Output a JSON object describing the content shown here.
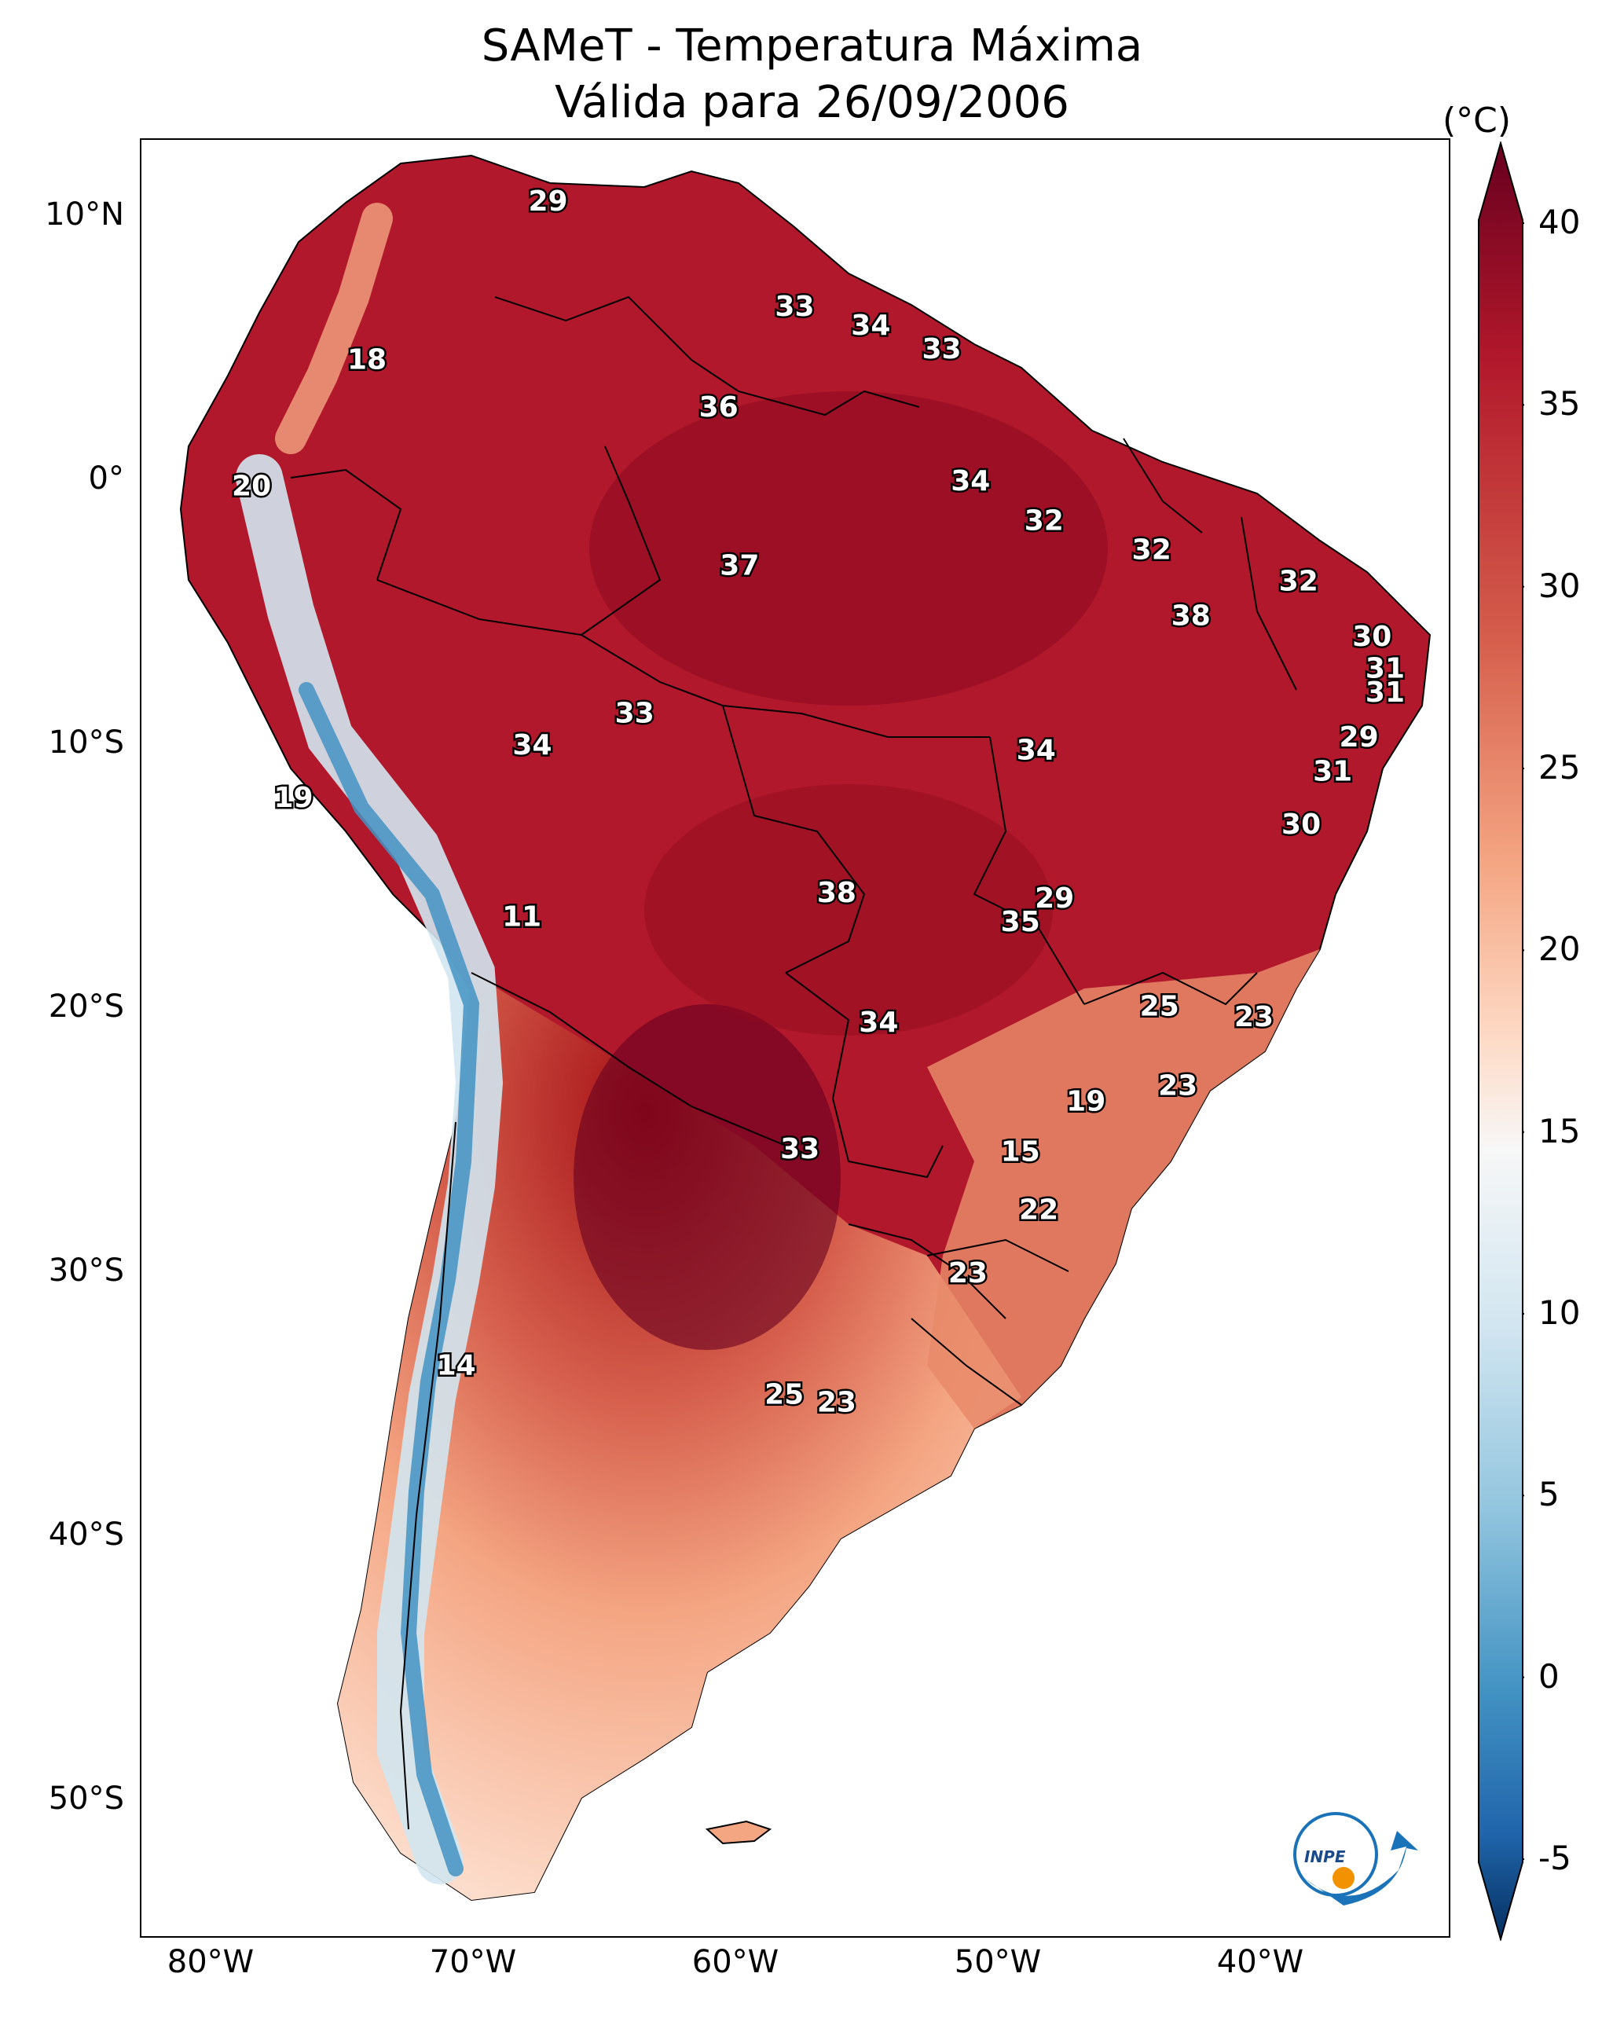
{
  "title": "SAMeT - Temperatura Máxima",
  "subtitle": "Válida para 26/09/2006",
  "unit": "(°C)",
  "colors": {
    "hot": "#67001f",
    "warm": "#b2182b",
    "mild": "#f4a582",
    "neutral": "#f7f7f7",
    "cool": "#92c5de",
    "cold": "#2166ac",
    "coldest": "#053061"
  },
  "lat_ticks": [
    {
      "label": "10°N",
      "lat": 10
    },
    {
      "label": "0°",
      "lat": 0
    },
    {
      "label": "10°S",
      "lat": -10
    },
    {
      "label": "20°S",
      "lat": -20
    },
    {
      "label": "30°S",
      "lat": -30
    },
    {
      "label": "40°S",
      "lat": -40
    },
    {
      "label": "50°S",
      "lat": -50
    }
  ],
  "lon_ticks": [
    {
      "label": "80°W",
      "lon": -80
    },
    {
      "label": "70°W",
      "lon": -70
    },
    {
      "label": "60°W",
      "lon": -60
    },
    {
      "label": "50°W",
      "lon": -50
    },
    {
      "label": "40°W",
      "lon": -40
    }
  ],
  "colorbar": {
    "min": -5,
    "max": 40,
    "ticks": [
      "40",
      "35",
      "30",
      "25",
      "20",
      "15",
      "10",
      "5",
      "0",
      "-5"
    ]
  },
  "station_values": [
    {
      "v": "29",
      "lon": -67.2,
      "lat": 10.6
    },
    {
      "v": "33",
      "lon": -57.8,
      "lat": 6.6
    },
    {
      "v": "34",
      "lon": -54.9,
      "lat": 5.9
    },
    {
      "v": "33",
      "lon": -52.2,
      "lat": 5.0
    },
    {
      "v": "18",
      "lon": -74.1,
      "lat": 4.6
    },
    {
      "v": "36",
      "lon": -60.7,
      "lat": 2.8
    },
    {
      "v": "20",
      "lon": -78.5,
      "lat": -0.2
    },
    {
      "v": "34",
      "lon": -51.1,
      "lat": 0.0
    },
    {
      "v": "32",
      "lon": -48.3,
      "lat": -1.5
    },
    {
      "v": "32",
      "lon": -44.2,
      "lat": -2.6
    },
    {
      "v": "37",
      "lon": -59.9,
      "lat": -3.2
    },
    {
      "v": "32",
      "lon": -38.6,
      "lat": -3.8
    },
    {
      "v": "38",
      "lon": -42.7,
      "lat": -5.1
    },
    {
      "v": "30",
      "lon": -35.8,
      "lat": -5.9
    },
    {
      "v": "31",
      "lon": -35.3,
      "lat": -7.1
    },
    {
      "v": "31",
      "lon": -35.3,
      "lat": -8.0
    },
    {
      "v": "33",
      "lon": -63.9,
      "lat": -8.8
    },
    {
      "v": "29",
      "lon": -36.3,
      "lat": -9.7
    },
    {
      "v": "34",
      "lon": -67.8,
      "lat": -10.0
    },
    {
      "v": "34",
      "lon": -48.6,
      "lat": -10.2
    },
    {
      "v": "31",
      "lon": -37.3,
      "lat": -11.0
    },
    {
      "v": "19",
      "lon": -76.9,
      "lat": -12.0
    },
    {
      "v": "30",
      "lon": -38.5,
      "lat": -13.0
    },
    {
      "v": "38",
      "lon": -56.2,
      "lat": -15.6
    },
    {
      "v": "29",
      "lon": -47.9,
      "lat": -15.8
    },
    {
      "v": "11",
      "lon": -68.2,
      "lat": -16.5
    },
    {
      "v": "35",
      "lon": -49.2,
      "lat": -16.7
    },
    {
      "v": "25",
      "lon": -43.9,
      "lat": -19.9
    },
    {
      "v": "34",
      "lon": -54.6,
      "lat": -20.5
    },
    {
      "v": "23",
      "lon": -40.3,
      "lat": -20.3
    },
    {
      "v": "23",
      "lon": -43.2,
      "lat": -22.9
    },
    {
      "v": "19",
      "lon": -46.7,
      "lat": -23.5
    },
    {
      "v": "33",
      "lon": -57.6,
      "lat": -25.3
    },
    {
      "v": "15",
      "lon": -49.2,
      "lat": -25.4
    },
    {
      "v": "22",
      "lon": -48.5,
      "lat": -27.6
    },
    {
      "v": "23",
      "lon": -51.2,
      "lat": -30.0
    },
    {
      "v": "14",
      "lon": -70.7,
      "lat": -33.5
    },
    {
      "v": "25",
      "lon": -58.2,
      "lat": -34.6
    },
    {
      "v": "23",
      "lon": -56.2,
      "lat": -34.9
    }
  ],
  "logo_text": "INPE"
}
